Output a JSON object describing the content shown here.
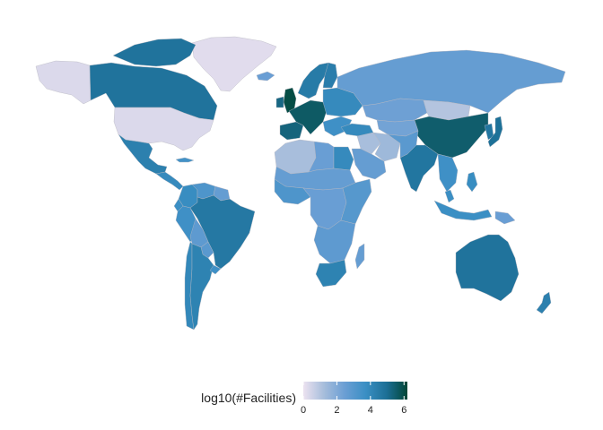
{
  "legend": {
    "title": "log10(#Facilities)",
    "ticks": [
      "0",
      "2",
      "4",
      "6"
    ],
    "tick_values": [
      0,
      2,
      4,
      6
    ],
    "range": [
      0,
      6.2
    ],
    "colors": [
      "#ece2f0",
      "#a6bddb",
      "#6a9ed4",
      "#3a8fc4",
      "#1c6f96",
      "#014636"
    ]
  },
  "chart_data": {
    "type": "heatmap",
    "title": "",
    "xlabel": "",
    "ylabel": "",
    "legend_title": "log10(#Facilities)",
    "legend_placement": "bottom",
    "scale": [
      0,
      6.2
    ],
    "regions": [
      {
        "name": "Greenland",
        "value": 0.2
      },
      {
        "name": "Alaska",
        "value": 0.3
      },
      {
        "name": "Canada",
        "value": 4.8
      },
      {
        "name": "Canadian Arctic Islands",
        "value": 4.8
      },
      {
        "name": "United States",
        "value": 0.3
      },
      {
        "name": "Mexico",
        "value": 4.3
      },
      {
        "name": "Central America",
        "value": 3.9
      },
      {
        "name": "Cuba",
        "value": 3.5
      },
      {
        "name": "Colombia",
        "value": 3.8
      },
      {
        "name": "Venezuela",
        "value": 3.2
      },
      {
        "name": "Guianas",
        "value": 2.6
      },
      {
        "name": "Peru",
        "value": 3.6
      },
      {
        "name": "Ecuador",
        "value": 3.7
      },
      {
        "name": "Brazil",
        "value": 4.6
      },
      {
        "name": "Bolivia",
        "value": 2.8
      },
      {
        "name": "Paraguay",
        "value": 2.9
      },
      {
        "name": "Argentina",
        "value": 4.2
      },
      {
        "name": "Chile",
        "value": 4.0
      },
      {
        "name": "Uruguay",
        "value": 3.6
      },
      {
        "name": "Iceland",
        "value": 2.5
      },
      {
        "name": "United Kingdom",
        "value": 6.0
      },
      {
        "name": "Ireland",
        "value": 5.2
      },
      {
        "name": "Western Europe",
        "value": 5.6
      },
      {
        "name": "Iberia",
        "value": 5.3
      },
      {
        "name": "Scandinavia",
        "value": 4.5
      },
      {
        "name": "Finland",
        "value": 4.4
      },
      {
        "name": "Eastern Europe",
        "value": 3.9
      },
      {
        "name": "Balkans",
        "value": 3.6
      },
      {
        "name": "Russia",
        "value": 2.6
      },
      {
        "name": "Kazakhstan",
        "value": 2.4
      },
      {
        "name": "Central Asia",
        "value": 2.3
      },
      {
        "name": "Mongolia",
        "value": 1.0
      },
      {
        "name": "China",
        "value": 5.5
      },
      {
        "name": "Korea",
        "value": 4.7
      },
      {
        "name": "Japan",
        "value": 4.9
      },
      {
        "name": "Turkey",
        "value": 3.9
      },
      {
        "name": "Iran",
        "value": 1.4
      },
      {
        "name": "Iraq and Syria",
        "value": 1.2
      },
      {
        "name": "Arabian Peninsula",
        "value": 2.6
      },
      {
        "name": "Afghanistan and Pakistan",
        "value": 2.9
      },
      {
        "name": "India",
        "value": 4.7
      },
      {
        "name": "Southeast Asia",
        "value": 3.6
      },
      {
        "name": "Malaysia",
        "value": 3.7
      },
      {
        "name": "Indonesia",
        "value": 3.7
      },
      {
        "name": "Philippines",
        "value": 3.8
      },
      {
        "name": "Papua New Guinea",
        "value": 2.5
      },
      {
        "name": "Australia",
        "value": 4.8
      },
      {
        "name": "New Zealand",
        "value": 4.3
      },
      {
        "name": "North Africa West",
        "value": 1.2
      },
      {
        "name": "Libya",
        "value": 2.5
      },
      {
        "name": "Egypt",
        "value": 3.9
      },
      {
        "name": "Sahel",
        "value": 2.6
      },
      {
        "name": "West Africa",
        "value": 3.2
      },
      {
        "name": "Central Africa",
        "value": 2.5
      },
      {
        "name": "East Africa",
        "value": 3.0
      },
      {
        "name": "Southern Africa",
        "value": 2.8
      },
      {
        "name": "South Africa",
        "value": 4.2
      },
      {
        "name": "Madagascar",
        "value": 2.6
      }
    ]
  }
}
